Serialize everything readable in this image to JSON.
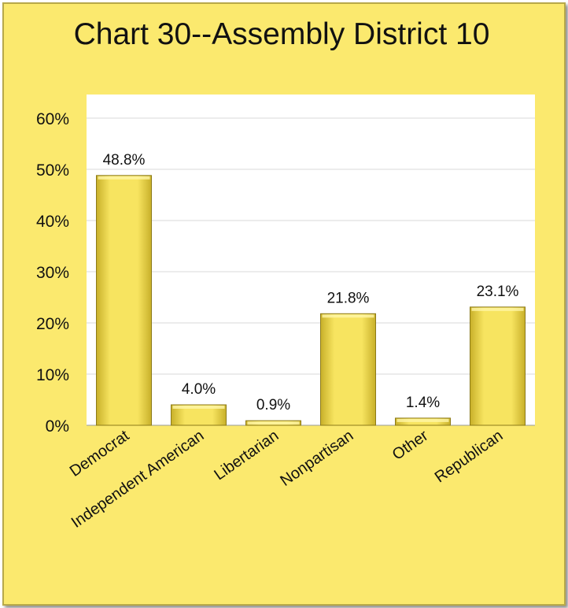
{
  "chart_data": {
    "type": "bar",
    "title": "Chart 30--Assembly District 10",
    "xlabel": "",
    "ylabel": "",
    "categories": [
      "Democrat",
      "Independent American",
      "Libertarian",
      "Nonpartisan",
      "Other",
      "Republican"
    ],
    "values": [
      48.8,
      4.0,
      0.9,
      21.8,
      1.4,
      23.1
    ],
    "data_labels": [
      "48.8%",
      "4.0%",
      "0.9%",
      "21.8%",
      "1.4%",
      "23.1%"
    ],
    "ylim": [
      0,
      60
    ],
    "yticks": [
      0,
      10,
      20,
      30,
      40,
      50,
      60
    ],
    "ytick_labels": [
      "0%",
      "10%",
      "20%",
      "30%",
      "40%",
      "50%",
      "60%"
    ],
    "grid": true,
    "legend": "none",
    "colors": {
      "background": "#fbe96e",
      "plot_area": "#ffffff",
      "bar_fill": "#f3dc48",
      "bar_edge": "#8c7a18",
      "gridline": "#d9d9d9"
    }
  }
}
